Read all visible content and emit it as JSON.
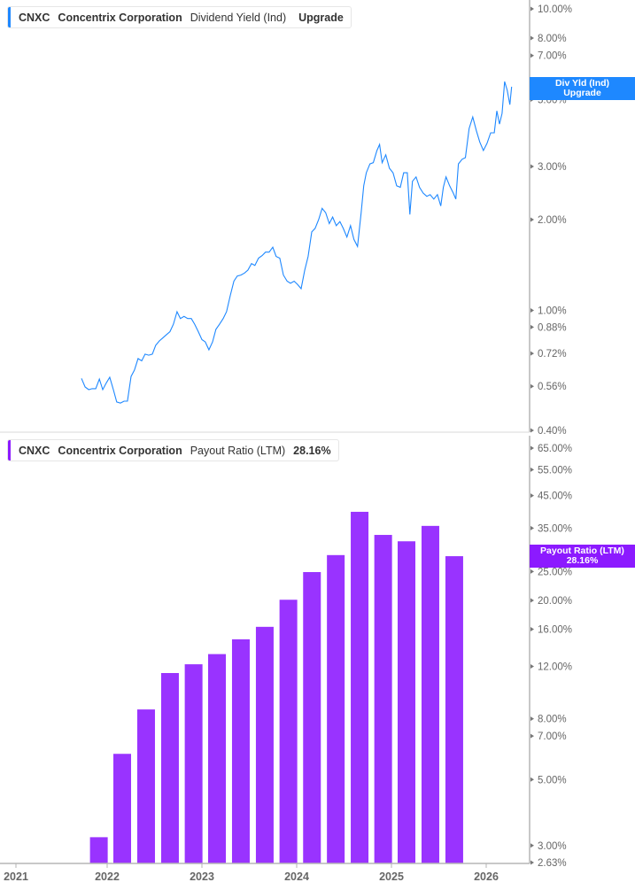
{
  "chart_data": [
    {
      "type": "line",
      "legend": {
        "ticker": "CNXC",
        "company": "Concentrix Corporation",
        "metric": "Dividend Yield (Ind)",
        "value": "Upgrade"
      },
      "tag": {
        "line1": "Div Yld (Ind)",
        "line2": "Upgrade"
      },
      "y_scale": "log",
      "ylim": [
        0.4,
        10
      ],
      "y_ticks": [
        "10.00%",
        "8.00%",
        "7.00%",
        "5.00%",
        "3.00%",
        "2.00%",
        "1.00%",
        "0.88%",
        "0.72%",
        "0.56%",
        "0.40%"
      ],
      "y_tick_values": [
        10,
        8,
        7,
        5,
        3,
        2,
        1,
        0.88,
        0.72,
        0.56,
        0.4
      ],
      "color": "#1e88ff",
      "series": [
        {
          "x": [
            "2021-09-24",
            "2021-10-08",
            "2021-10-22",
            "2021-11-04",
            "2021-11-18",
            "2021-12-02",
            "2021-12-15",
            "2021-12-29",
            "2022-01-11",
            "2022-01-25",
            "2022-02-07",
            "2022-02-21",
            "2022-03-07",
            "2022-03-20",
            "2022-04-03",
            "2022-04-16",
            "2022-04-30",
            "2022-05-14",
            "2022-05-27",
            "2022-06-10",
            "2022-06-24",
            "2022-07-07",
            "2022-07-21",
            "2022-08-03",
            "2022-08-17",
            "2022-08-31",
            "2022-09-13",
            "2022-09-27",
            "2022-10-10",
            "2022-10-24",
            "2022-11-07",
            "2022-11-21",
            "2022-12-04",
            "2022-12-18",
            "2023-01-01",
            "2023-01-14",
            "2023-01-28",
            "2023-02-11",
            "2023-02-24",
            "2023-03-10",
            "2023-03-24",
            "2023-04-06",
            "2023-04-20",
            "2023-05-04",
            "2023-05-17",
            "2023-05-31",
            "2023-06-14",
            "2023-06-27",
            "2023-07-11",
            "2023-07-24",
            "2023-08-07",
            "2023-08-21",
            "2023-09-03",
            "2023-09-17",
            "2023-10-01",
            "2023-10-14",
            "2023-10-28",
            "2023-11-11",
            "2023-11-25",
            "2023-12-08",
            "2023-12-22",
            "2024-01-04",
            "2024-01-18",
            "2024-02-01",
            "2024-02-14",
            "2024-02-28",
            "2024-03-12",
            "2024-03-26",
            "2024-04-08",
            "2024-04-22",
            "2024-05-06",
            "2024-05-19",
            "2024-06-02",
            "2024-06-16",
            "2024-06-29",
            "2024-07-13",
            "2024-07-27",
            "2024-08-09",
            "2024-08-23",
            "2024-09-06",
            "2024-09-16",
            "2024-09-26",
            "2024-10-10",
            "2024-10-23",
            "2024-11-06",
            "2024-11-16",
            "2024-11-26",
            "2024-12-10",
            "2024-12-24",
            "2025-01-07",
            "2025-01-21",
            "2025-02-04",
            "2025-02-17",
            "2025-03-03",
            "2025-03-13",
            "2025-03-23",
            "2025-04-06",
            "2025-04-19",
            "2025-05-03",
            "2025-05-17",
            "2025-05-30",
            "2025-06-13",
            "2025-06-27",
            "2025-07-10",
            "2025-07-20",
            "2025-07-30",
            "2025-08-13",
            "2025-08-27",
            "2025-09-06",
            "2025-09-16",
            "2025-09-30",
            "2025-10-13",
            "2025-10-27",
            "2025-11-10",
            "2025-11-24",
            "2025-12-07",
            "2025-12-21",
            "2026-01-04",
            "2026-01-18",
            "2026-02-01",
            "2026-02-11",
            "2026-02-21",
            "2026-03-03",
            "2026-03-13",
            "2026-03-23",
            "2026-04-02",
            "2026-04-09"
          ],
          "y": [
            0.595,
            0.557,
            0.546,
            0.55,
            0.55,
            0.592,
            0.546,
            0.575,
            0.6,
            0.546,
            0.497,
            0.493,
            0.5,
            0.5,
            0.604,
            0.634,
            0.692,
            0.68,
            0.716,
            0.71,
            0.716,
            0.766,
            0.792,
            0.81,
            0.83,
            0.85,
            0.9,
            0.99,
            0.94,
            0.955,
            0.94,
            0.94,
            0.9,
            0.85,
            0.8,
            0.786,
            0.74,
            0.786,
            0.865,
            0.9,
            0.94,
            0.99,
            1.12,
            1.25,
            1.3,
            1.31,
            1.33,
            1.36,
            1.43,
            1.41,
            1.49,
            1.52,
            1.56,
            1.56,
            1.62,
            1.51,
            1.49,
            1.31,
            1.25,
            1.23,
            1.25,
            1.22,
            1.18,
            1.36,
            1.51,
            1.82,
            1.87,
            2.0,
            2.18,
            2.11,
            1.94,
            2.04,
            1.91,
            1.97,
            1.87,
            1.75,
            1.91,
            1.72,
            1.63,
            2.11,
            2.59,
            2.86,
            3.06,
            3.09,
            3.39,
            3.55,
            3.09,
            3.28,
            2.96,
            2.86,
            2.59,
            2.56,
            2.86,
            2.86,
            2.08,
            2.68,
            2.77,
            2.56,
            2.45,
            2.39,
            2.42,
            2.34,
            2.42,
            2.22,
            2.56,
            2.77,
            2.59,
            2.45,
            2.34,
            3.06,
            3.17,
            3.21,
            4.01,
            4.38,
            3.94,
            3.62,
            3.39,
            3.58,
            3.88,
            3.88,
            4.59,
            4.15,
            4.5,
            5.74,
            5.37,
            4.81,
            5.52
          ]
        }
      ]
    },
    {
      "type": "bar",
      "legend": {
        "ticker": "CNXC",
        "company": "Concentrix Corporation",
        "metric": "Payout Ratio (LTM)",
        "value": "28.16%"
      },
      "tag": {
        "line1": "Payout Ratio (LTM)",
        "line2": "28.16%"
      },
      "y_scale": "log",
      "ylim": [
        2.63,
        65
      ],
      "y_ticks": [
        "65.00%",
        "55.00%",
        "45.00%",
        "35.00%",
        "25.00%",
        "20.00%",
        "16.00%",
        "12.00%",
        "8.00%",
        "7.00%",
        "5.00%",
        "3.00%",
        "2.63%"
      ],
      "y_tick_values": [
        65,
        55,
        45,
        35,
        25,
        20,
        16,
        12,
        8,
        7,
        5,
        3,
        2.63
      ],
      "color": "#9933ff",
      "x_ticks": [
        "2021",
        "2022",
        "2023",
        "2024",
        "2025",
        "2026"
      ],
      "categories": [
        "2021-11-30",
        "2022-02-28",
        "2022-05-31",
        "2022-08-31",
        "2022-11-30",
        "2023-02-28",
        "2023-05-31",
        "2023-08-31",
        "2023-11-30",
        "2024-02-29",
        "2024-05-31",
        "2024-08-31",
        "2024-11-30",
        "2025-02-28",
        "2025-05-31",
        "2025-08-31"
      ],
      "values": [
        3.2,
        6.1,
        8.6,
        11.4,
        12.2,
        13.2,
        14.8,
        16.3,
        20.1,
        24.9,
        28.4,
        39.7,
        33.2,
        31.6,
        35.6,
        28.16
      ]
    }
  ]
}
